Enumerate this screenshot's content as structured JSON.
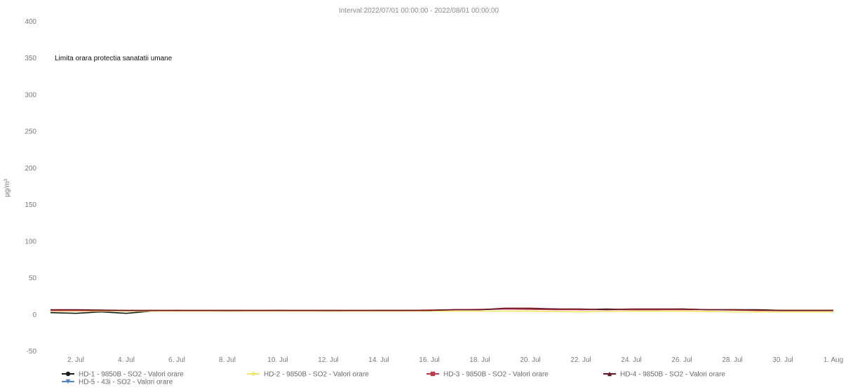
{
  "chart_data": {
    "type": "line",
    "title": "Interval:2022/07/01 00:00:00 - 2022/08/01 00:00:00",
    "ylabel": "µg/m³",
    "xlabel": "",
    "ylim": [
      -50,
      400
    ],
    "yticks": [
      -50,
      0,
      50,
      100,
      150,
      200,
      250,
      300,
      350,
      400
    ],
    "xlim": [
      "2022-07-01",
      "2022-08-01"
    ],
    "xtick_labels": [
      "2. Jul",
      "4. Jul",
      "6. Jul",
      "8. Jul",
      "10. Jul",
      "12. Jul",
      "14. Jul",
      "16. Jul",
      "18. Jul",
      "20. Jul",
      "22. Jul",
      "24. Jul",
      "26. Jul",
      "28. Jul",
      "30. Jul",
      "1. Aug"
    ],
    "xtick_dates": [
      "2022-07-02",
      "2022-07-04",
      "2022-07-06",
      "2022-07-08",
      "2022-07-10",
      "2022-07-12",
      "2022-07-14",
      "2022-07-16",
      "2022-07-18",
      "2022-07-20",
      "2022-07-22",
      "2022-07-24",
      "2022-07-26",
      "2022-07-28",
      "2022-07-30",
      "2022-08-01"
    ],
    "annotation": "Limita orara protectia sanatatii umane",
    "legend_position": "bottom",
    "series": [
      {
        "name": "HD-1 - 9850B - SO2 - Valori orare",
        "color": "#1a1a1a",
        "marker": "circle",
        "x": [
          "2022-07-01",
          "2022-07-02",
          "2022-07-03",
          "2022-07-04",
          "2022-07-05",
          "2022-07-06",
          "2022-07-08",
          "2022-07-10",
          "2022-07-12",
          "2022-07-14",
          "2022-07-16",
          "2022-07-17",
          "2022-07-18",
          "2022-07-19",
          "2022-07-20",
          "2022-07-21",
          "2022-07-22",
          "2022-07-23",
          "2022-07-24",
          "2022-07-25",
          "2022-07-26",
          "2022-07-27",
          "2022-07-28",
          "2022-07-29",
          "2022-07-30",
          "2022-07-31",
          "2022-08-01"
        ],
        "y": [
          2,
          1,
          3,
          1,
          4,
          5,
          4,
          5,
          4,
          5,
          5,
          6,
          6,
          7,
          7,
          7,
          6,
          7,
          6,
          6,
          7,
          6,
          6,
          6,
          5,
          5,
          5
        ]
      },
      {
        "name": "HD-2 - 9850B - SO2 - Valori orare",
        "color": "#f2e46b",
        "marker": "diamond",
        "x": [
          "2022-07-01",
          "2022-07-04",
          "2022-07-08",
          "2022-07-12",
          "2022-07-16",
          "2022-07-17",
          "2022-07-18",
          "2022-07-20",
          "2022-07-22",
          "2022-07-24",
          "2022-07-26",
          "2022-07-28",
          "2022-07-30",
          "2022-08-01"
        ],
        "y": [
          4,
          4,
          4,
          4,
          4,
          4,
          4,
          4,
          3,
          4,
          4,
          3,
          3,
          3
        ]
      },
      {
        "name": "HD-3 - 9850B - SO2 - Valori orare",
        "color": "#c23b4a",
        "marker": "square",
        "x": [
          "2022-07-01",
          "2022-07-03",
          "2022-07-05",
          "2022-07-07",
          "2022-07-09",
          "2022-07-11",
          "2022-07-13",
          "2022-07-15",
          "2022-07-17",
          "2022-07-19",
          "2022-07-21",
          "2022-07-23",
          "2022-07-25",
          "2022-07-27",
          "2022-07-29",
          "2022-07-31",
          "2022-08-01"
        ],
        "y": [
          5,
          5,
          5,
          5,
          5,
          5,
          5,
          5,
          6,
          7,
          6,
          6,
          6,
          6,
          5,
          5,
          5
        ]
      },
      {
        "name": "HD-4 - 9850B - SO2 - Valori orare",
        "color": "#6a1420",
        "marker": "triangle",
        "x": [
          "2022-07-01",
          "2022-07-02",
          "2022-07-04",
          "2022-07-06",
          "2022-07-08",
          "2022-07-10",
          "2022-07-12",
          "2022-07-14",
          "2022-07-16",
          "2022-07-17",
          "2022-07-18",
          "2022-07-19",
          "2022-07-20",
          "2022-07-21",
          "2022-07-22",
          "2022-07-23",
          "2022-07-24",
          "2022-07-26",
          "2022-07-27",
          "2022-07-28",
          "2022-07-30",
          "2022-08-01"
        ],
        "y": [
          6,
          6,
          5,
          5,
          5,
          5,
          5,
          5,
          5,
          6,
          6,
          8,
          8,
          7,
          7,
          6,
          7,
          7,
          6,
          6,
          5,
          5
        ]
      },
      {
        "name": "HD-5 - 43i - SO2 - Valori orare",
        "color": "#4b86c8",
        "marker": "triangle-down",
        "x": [],
        "y": []
      }
    ]
  }
}
